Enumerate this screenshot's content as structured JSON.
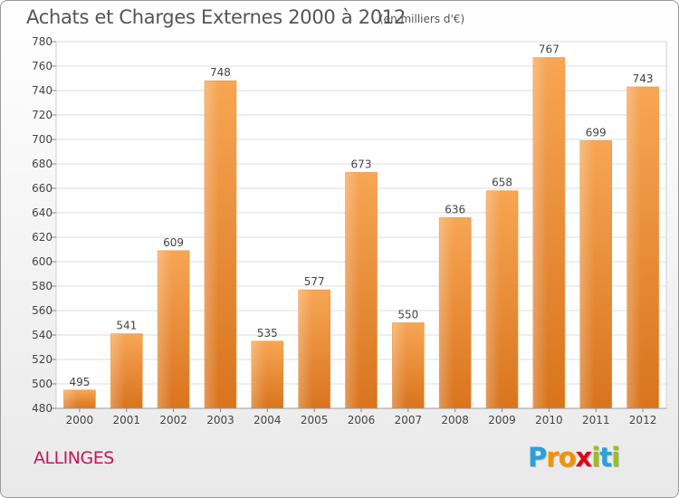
{
  "chart_data": {
    "type": "bar",
    "title": "Achats et Charges Externes 2000 à 2012",
    "unit_label": "(en milliers d'€)",
    "categories": [
      "2000",
      "2001",
      "2002",
      "2003",
      "2004",
      "2005",
      "2006",
      "2007",
      "2008",
      "2009",
      "2010",
      "2011",
      "2012"
    ],
    "values": [
      495,
      541,
      609,
      748,
      535,
      577,
      673,
      550,
      636,
      658,
      767,
      699,
      743
    ],
    "ylim": [
      480,
      780
    ],
    "yticks": [
      480,
      500,
      520,
      540,
      560,
      580,
      600,
      620,
      640,
      660,
      680,
      700,
      720,
      740,
      760,
      780
    ],
    "grid": true,
    "bar_color": "#f0a04a"
  },
  "commune": "ALLINGES",
  "logo": {
    "letters": [
      "P",
      "r",
      "o",
      "x",
      "i",
      "t",
      "i"
    ],
    "colors": [
      "#2aa0dc",
      "#f39200",
      "#f39200",
      "#e2001a",
      "#95c11f",
      "#2aa0dc",
      "#95c11f"
    ]
  }
}
